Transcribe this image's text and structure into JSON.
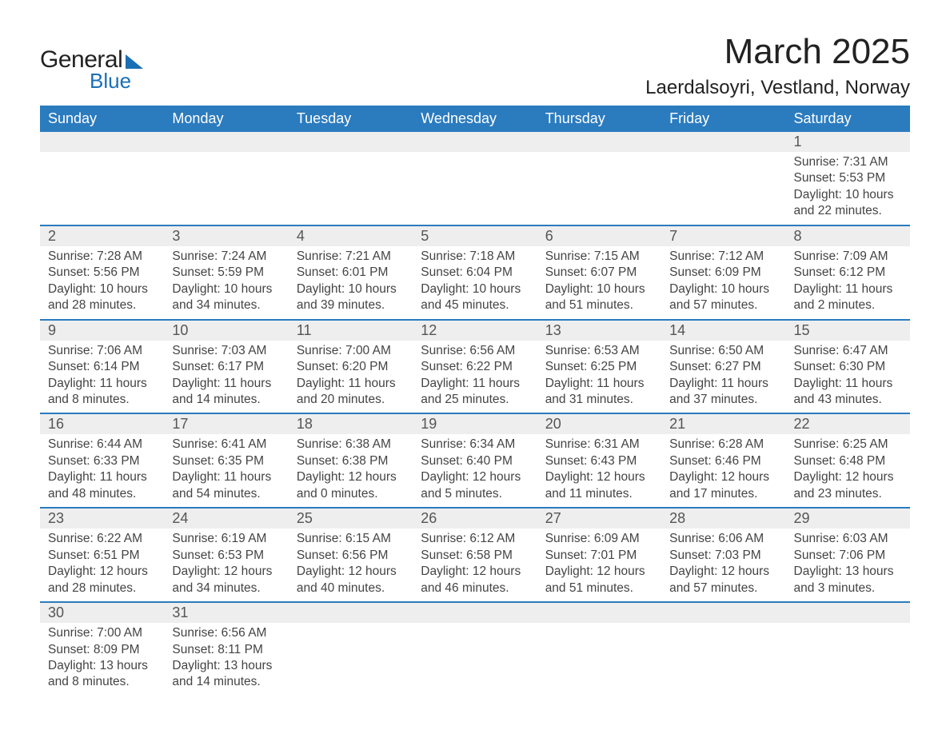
{
  "logo": {
    "text_general": "General",
    "text_blue": "Blue"
  },
  "title": {
    "month": "March 2025",
    "location": "Laerdalsoyri, Vestland, Norway"
  },
  "columns": [
    "Sunday",
    "Monday",
    "Tuesday",
    "Wednesday",
    "Thursday",
    "Friday",
    "Saturday"
  ],
  "styling": {
    "header_bg": "#2b7bbf",
    "header_text_color": "#ffffff",
    "daynum_bg": "#eeeeee",
    "row_divider_color": "#2b7bbf",
    "body_text_color": "#444444",
    "title_fontsize_pt": 33,
    "location_fontsize_pt": 18,
    "header_fontsize_pt": 13.5,
    "daynum_fontsize_pt": 13.5,
    "body_fontsize_pt": 11.5,
    "logo_accent_color": "#1a6fb5",
    "page_bg": "#ffffff"
  },
  "weeks": [
    [
      null,
      null,
      null,
      null,
      null,
      null,
      {
        "n": "1",
        "sunrise": "Sunrise: 7:31 AM",
        "sunset": "Sunset: 5:53 PM",
        "daylight": "Daylight: 10 hours and 22 minutes."
      }
    ],
    [
      {
        "n": "2",
        "sunrise": "Sunrise: 7:28 AM",
        "sunset": "Sunset: 5:56 PM",
        "daylight": "Daylight: 10 hours and 28 minutes."
      },
      {
        "n": "3",
        "sunrise": "Sunrise: 7:24 AM",
        "sunset": "Sunset: 5:59 PM",
        "daylight": "Daylight: 10 hours and 34 minutes."
      },
      {
        "n": "4",
        "sunrise": "Sunrise: 7:21 AM",
        "sunset": "Sunset: 6:01 PM",
        "daylight": "Daylight: 10 hours and 39 minutes."
      },
      {
        "n": "5",
        "sunrise": "Sunrise: 7:18 AM",
        "sunset": "Sunset: 6:04 PM",
        "daylight": "Daylight: 10 hours and 45 minutes."
      },
      {
        "n": "6",
        "sunrise": "Sunrise: 7:15 AM",
        "sunset": "Sunset: 6:07 PM",
        "daylight": "Daylight: 10 hours and 51 minutes."
      },
      {
        "n": "7",
        "sunrise": "Sunrise: 7:12 AM",
        "sunset": "Sunset: 6:09 PM",
        "daylight": "Daylight: 10 hours and 57 minutes."
      },
      {
        "n": "8",
        "sunrise": "Sunrise: 7:09 AM",
        "sunset": "Sunset: 6:12 PM",
        "daylight": "Daylight: 11 hours and 2 minutes."
      }
    ],
    [
      {
        "n": "9",
        "sunrise": "Sunrise: 7:06 AM",
        "sunset": "Sunset: 6:14 PM",
        "daylight": "Daylight: 11 hours and 8 minutes."
      },
      {
        "n": "10",
        "sunrise": "Sunrise: 7:03 AM",
        "sunset": "Sunset: 6:17 PM",
        "daylight": "Daylight: 11 hours and 14 minutes."
      },
      {
        "n": "11",
        "sunrise": "Sunrise: 7:00 AM",
        "sunset": "Sunset: 6:20 PM",
        "daylight": "Daylight: 11 hours and 20 minutes."
      },
      {
        "n": "12",
        "sunrise": "Sunrise: 6:56 AM",
        "sunset": "Sunset: 6:22 PM",
        "daylight": "Daylight: 11 hours and 25 minutes."
      },
      {
        "n": "13",
        "sunrise": "Sunrise: 6:53 AM",
        "sunset": "Sunset: 6:25 PM",
        "daylight": "Daylight: 11 hours and 31 minutes."
      },
      {
        "n": "14",
        "sunrise": "Sunrise: 6:50 AM",
        "sunset": "Sunset: 6:27 PM",
        "daylight": "Daylight: 11 hours and 37 minutes."
      },
      {
        "n": "15",
        "sunrise": "Sunrise: 6:47 AM",
        "sunset": "Sunset: 6:30 PM",
        "daylight": "Daylight: 11 hours and 43 minutes."
      }
    ],
    [
      {
        "n": "16",
        "sunrise": "Sunrise: 6:44 AM",
        "sunset": "Sunset: 6:33 PM",
        "daylight": "Daylight: 11 hours and 48 minutes."
      },
      {
        "n": "17",
        "sunrise": "Sunrise: 6:41 AM",
        "sunset": "Sunset: 6:35 PM",
        "daylight": "Daylight: 11 hours and 54 minutes."
      },
      {
        "n": "18",
        "sunrise": "Sunrise: 6:38 AM",
        "sunset": "Sunset: 6:38 PM",
        "daylight": "Daylight: 12 hours and 0 minutes."
      },
      {
        "n": "19",
        "sunrise": "Sunrise: 6:34 AM",
        "sunset": "Sunset: 6:40 PM",
        "daylight": "Daylight: 12 hours and 5 minutes."
      },
      {
        "n": "20",
        "sunrise": "Sunrise: 6:31 AM",
        "sunset": "Sunset: 6:43 PM",
        "daylight": "Daylight: 12 hours and 11 minutes."
      },
      {
        "n": "21",
        "sunrise": "Sunrise: 6:28 AM",
        "sunset": "Sunset: 6:46 PM",
        "daylight": "Daylight: 12 hours and 17 minutes."
      },
      {
        "n": "22",
        "sunrise": "Sunrise: 6:25 AM",
        "sunset": "Sunset: 6:48 PM",
        "daylight": "Daylight: 12 hours and 23 minutes."
      }
    ],
    [
      {
        "n": "23",
        "sunrise": "Sunrise: 6:22 AM",
        "sunset": "Sunset: 6:51 PM",
        "daylight": "Daylight: 12 hours and 28 minutes."
      },
      {
        "n": "24",
        "sunrise": "Sunrise: 6:19 AM",
        "sunset": "Sunset: 6:53 PM",
        "daylight": "Daylight: 12 hours and 34 minutes."
      },
      {
        "n": "25",
        "sunrise": "Sunrise: 6:15 AM",
        "sunset": "Sunset: 6:56 PM",
        "daylight": "Daylight: 12 hours and 40 minutes."
      },
      {
        "n": "26",
        "sunrise": "Sunrise: 6:12 AM",
        "sunset": "Sunset: 6:58 PM",
        "daylight": "Daylight: 12 hours and 46 minutes."
      },
      {
        "n": "27",
        "sunrise": "Sunrise: 6:09 AM",
        "sunset": "Sunset: 7:01 PM",
        "daylight": "Daylight: 12 hours and 51 minutes."
      },
      {
        "n": "28",
        "sunrise": "Sunrise: 6:06 AM",
        "sunset": "Sunset: 7:03 PM",
        "daylight": "Daylight: 12 hours and 57 minutes."
      },
      {
        "n": "29",
        "sunrise": "Sunrise: 6:03 AM",
        "sunset": "Sunset: 7:06 PM",
        "daylight": "Daylight: 13 hours and 3 minutes."
      }
    ],
    [
      {
        "n": "30",
        "sunrise": "Sunrise: 7:00 AM",
        "sunset": "Sunset: 8:09 PM",
        "daylight": "Daylight: 13 hours and 8 minutes."
      },
      {
        "n": "31",
        "sunrise": "Sunrise: 6:56 AM",
        "sunset": "Sunset: 8:11 PM",
        "daylight": "Daylight: 13 hours and 14 minutes."
      },
      null,
      null,
      null,
      null,
      null
    ]
  ]
}
